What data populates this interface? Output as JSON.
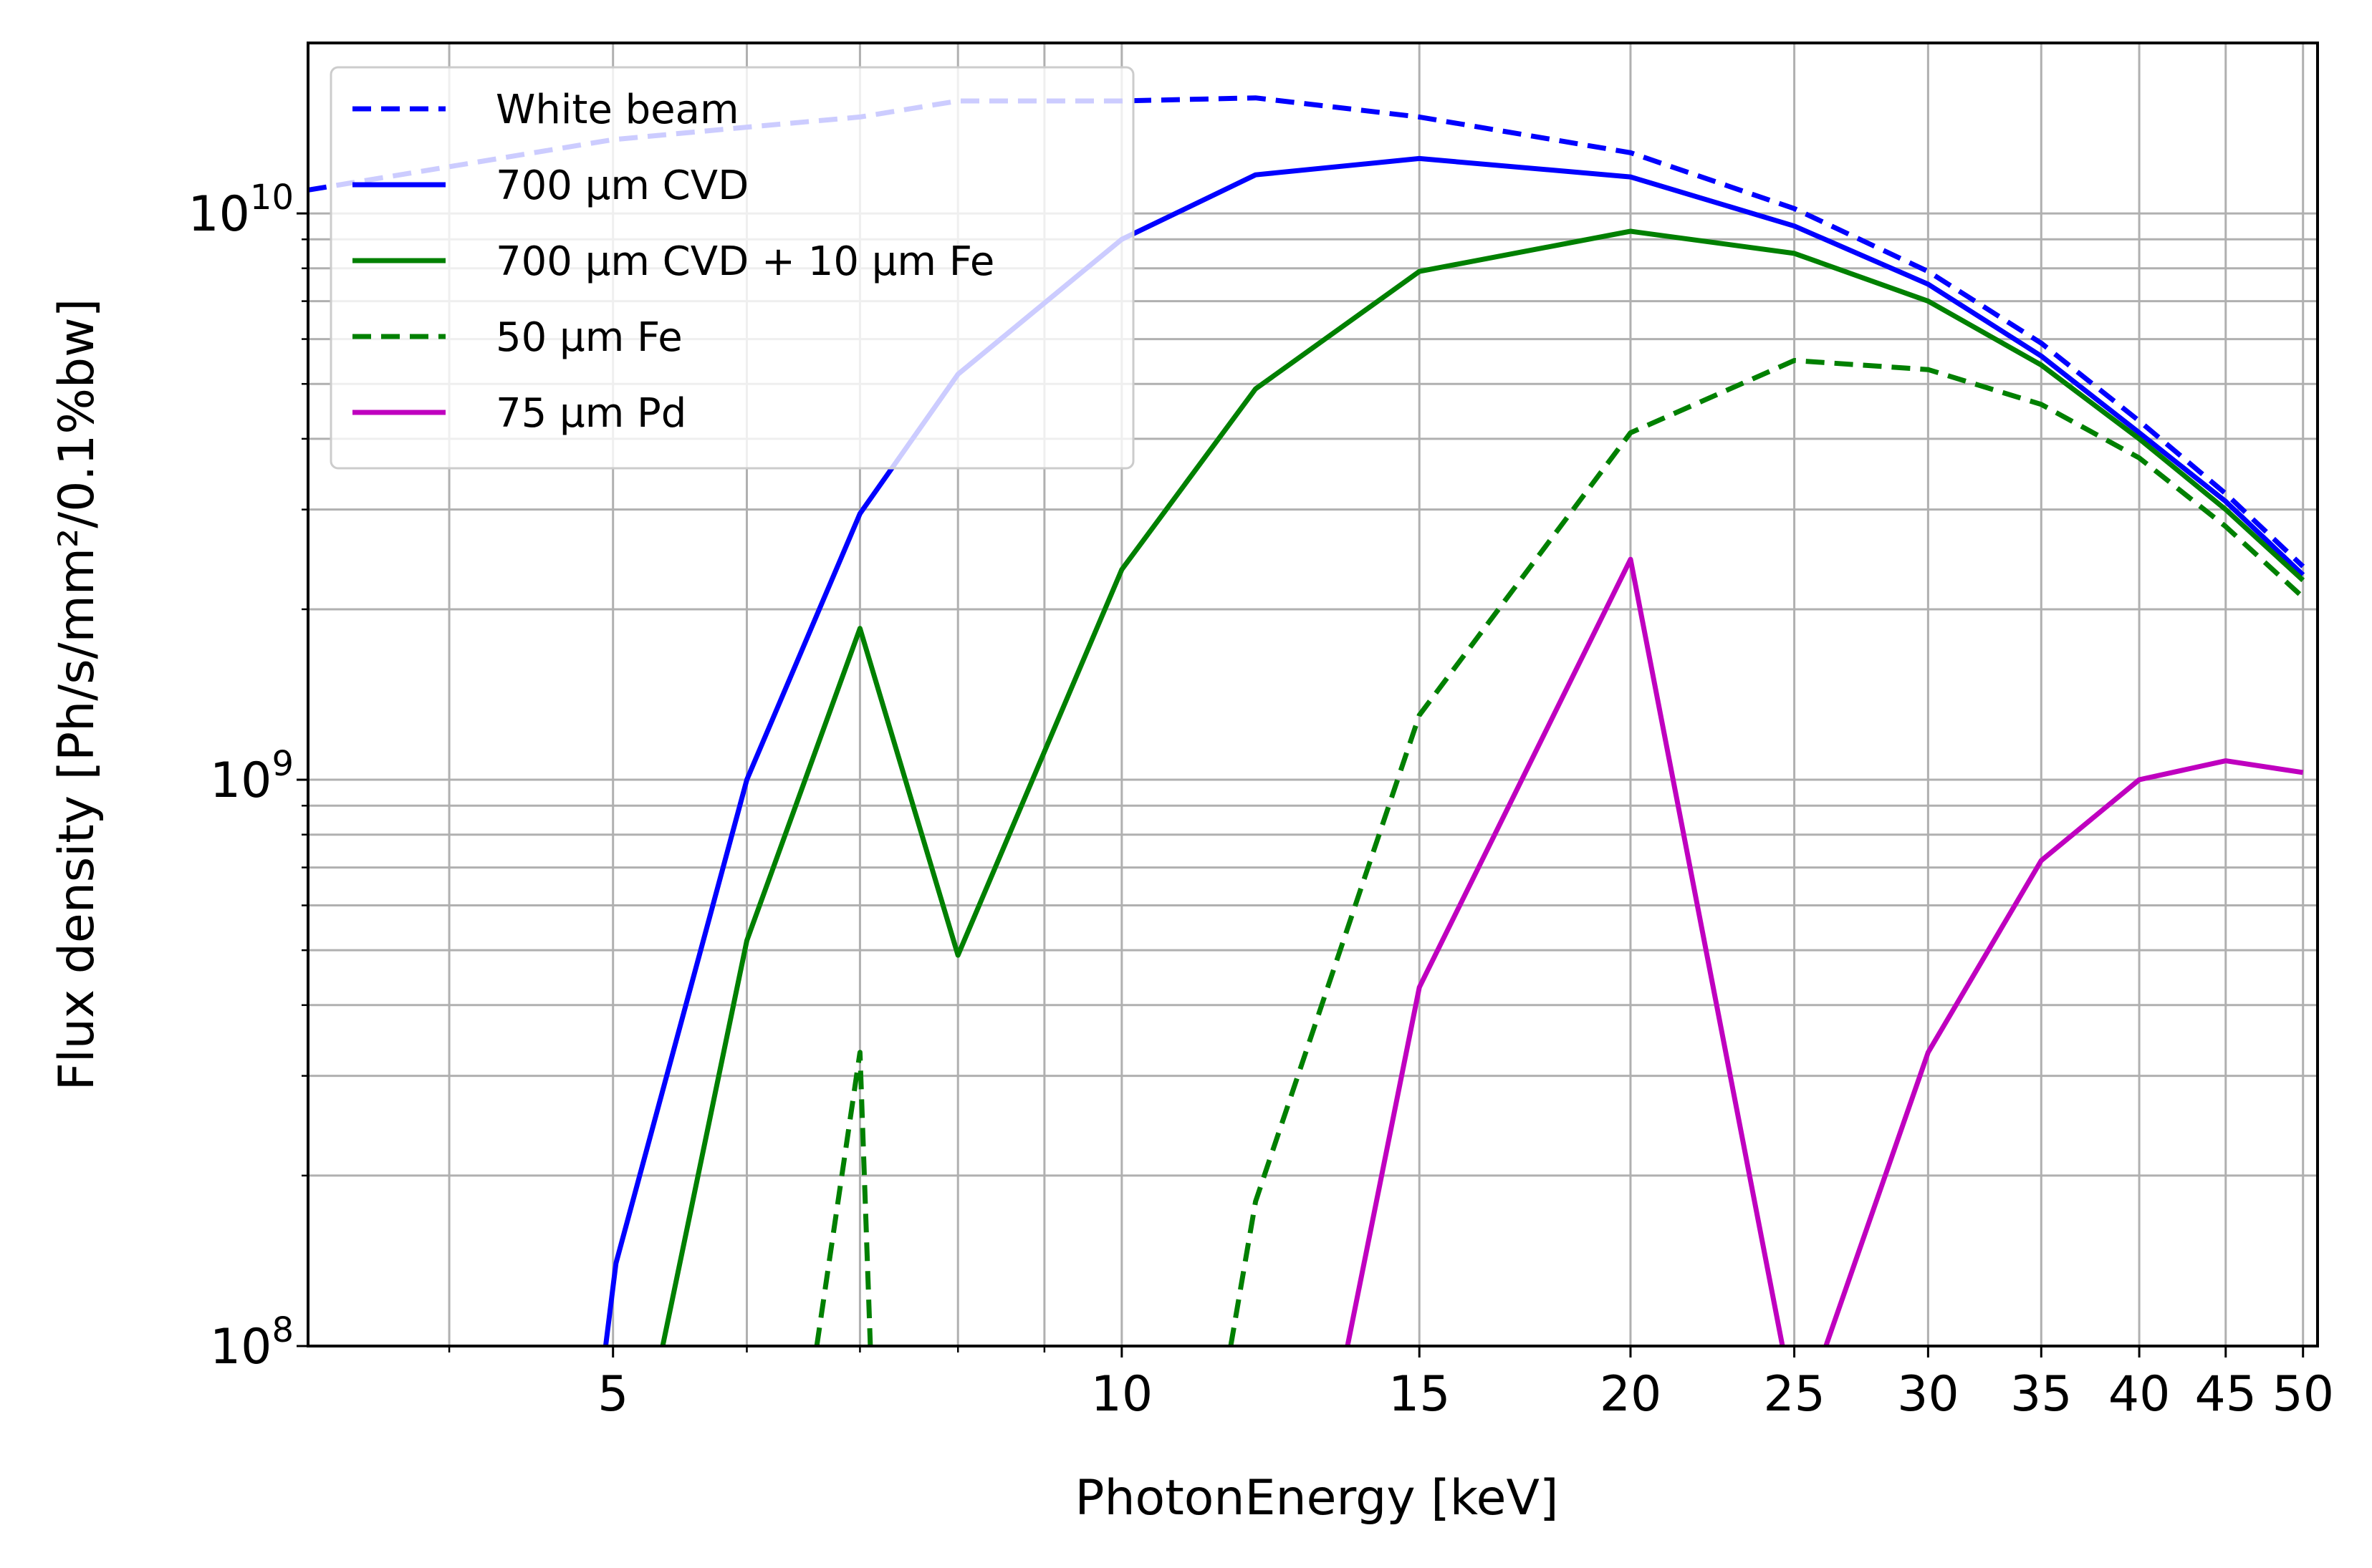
{
  "chart_data": {
    "type": "line",
    "xlabel": "PhotonEnergy [keV]",
    "ylabel": "Flux density [Ph/s/mm²/0.1%bw]",
    "x_scale": "log",
    "y_scale": "log",
    "xlim": [
      3.3,
      51
    ],
    "ylim": [
      100000000,
      20000000000
    ],
    "grid": true,
    "legend_position": "upper-left",
    "x_ticks": [
      {
        "value": 5,
        "label": "5"
      },
      {
        "value": 10,
        "label": "10"
      },
      {
        "value": 15,
        "label": "15"
      },
      {
        "value": 20,
        "label": "20"
      },
      {
        "value": 25,
        "label": "25"
      },
      {
        "value": 30,
        "label": "30"
      },
      {
        "value": 35,
        "label": "35"
      },
      {
        "value": 40,
        "label": "40"
      },
      {
        "value": 45,
        "label": "45"
      },
      {
        "value": 50,
        "label": "50"
      }
    ],
    "x_minor_ticks": [
      4,
      6,
      7,
      8,
      9
    ],
    "y_ticks": [
      {
        "value": 100000000,
        "base": "10",
        "exp": "8"
      },
      {
        "value": 1000000000,
        "base": "10",
        "exp": "9"
      },
      {
        "value": 10000000000,
        "base": "10",
        "exp": "10"
      }
    ],
    "y_minor_ticks": [
      200000000,
      300000000,
      400000000,
      500000000,
      600000000,
      700000000,
      800000000,
      900000000,
      2000000000,
      3000000000,
      4000000000,
      5000000000,
      6000000000,
      7000000000,
      8000000000,
      9000000000
    ],
    "series": [
      {
        "name": "White beam",
        "color": "#0000ff",
        "dash": "dashed",
        "x": [
          3.3,
          5,
          6,
          7,
          8,
          10,
          12,
          15,
          20,
          25,
          30,
          35,
          40,
          45,
          50
        ],
        "y": [
          11000000000,
          13500000000,
          14200000000,
          14800000000,
          15800000000,
          15800000000,
          16000000000,
          14800000000,
          12800000000,
          10200000000,
          7900000000,
          5900000000,
          4300000000,
          3200000000,
          2380000000
        ]
      },
      {
        "name": "700 μm CVD",
        "color": "#0000ff",
        "dash": "solid",
        "x": [
          4.95,
          5.02,
          6,
          7,
          8,
          10,
          12,
          15,
          20,
          25,
          30,
          35,
          40,
          45,
          50
        ],
        "y": [
          100000000,
          140000000,
          1000000000,
          2950000000,
          5200000000,
          9000000000,
          11700000000,
          12500000000,
          11600000000,
          9500000000,
          7500000000,
          5600000000,
          4100000000,
          3100000000,
          2300000000
        ]
      },
      {
        "name": "700 μm CVD + 10 μm Fe",
        "color": "#008000",
        "dash": "solid",
        "x": [
          5.35,
          6,
          7,
          8,
          10,
          12,
          15,
          20,
          25,
          30,
          35,
          40,
          45,
          50
        ],
        "y": [
          100000000,
          520000000,
          1850000000,
          490000000,
          2350000000,
          4900000000,
          7900000000,
          9300000000,
          8500000000,
          7000000000,
          5400000000,
          4000000000,
          3000000000,
          2250000000
        ]
      },
      {
        "name": "50 μm Fe",
        "color": "#008000",
        "dash": "dashed",
        "segments": [
          {
            "x": [
              6.6,
              7,
              7.1
            ],
            "y": [
              100000000,
              330000000,
              100000000
            ]
          },
          {
            "x": [
              11.6,
              12,
              15,
              20,
              25,
              30,
              35,
              40,
              45,
              50
            ],
            "y": [
              100000000,
              180000000,
              1300000000,
              4100000000,
              5500000000,
              5300000000,
              4600000000,
              3700000000,
              2800000000,
              2100000000
            ]
          }
        ]
      },
      {
        "name": "75 μm Pd",
        "color": "#bf00bf",
        "dash": "solid",
        "segments": [
          {
            "x": [
              13.6,
              15,
              20,
              24.6
            ],
            "y": [
              100000000,
              430000000,
              2450000000,
              100000000
            ]
          },
          {
            "x": [
              26.1,
              30,
              35,
              40,
              45,
              50
            ],
            "y": [
              100000000,
              330000000,
              720000000,
              1000000000,
              1080000000,
              1030000000
            ]
          }
        ]
      }
    ]
  }
}
